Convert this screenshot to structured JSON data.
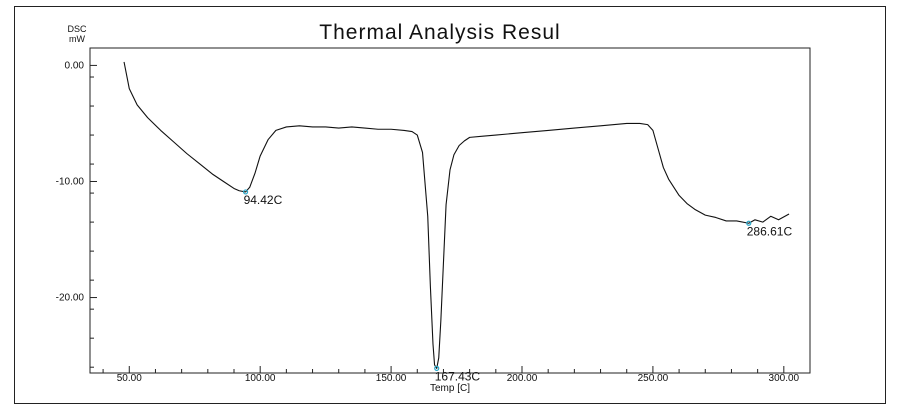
{
  "chart_data": {
    "type": "line",
    "title": "Thermal Analysis Resul",
    "ylabel_lines": [
      "DSC",
      "mW"
    ],
    "xlabel": "Temp [C]",
    "xlim": [
      35,
      310
    ],
    "ylim": [
      -26.5,
      1.5
    ],
    "xticks": [
      50,
      100,
      150,
      200,
      250,
      300
    ],
    "xtick_labels": [
      "50.00",
      "100.00",
      "150.00",
      "200.00",
      "250.00",
      "300.00"
    ],
    "yticks": [
      0,
      -10,
      -20
    ],
    "ytick_labels": [
      "0.00",
      "-10.00",
      "-20.00"
    ],
    "grid": false,
    "series": [
      {
        "color": "#111111",
        "x": [
          48,
          50,
          53,
          57,
          62,
          67,
          72,
          77,
          82,
          86,
          90,
          92,
          94.42,
          96,
          98,
          100,
          103,
          106,
          110,
          115,
          120,
          125,
          130,
          135,
          140,
          145,
          150,
          155,
          158,
          160,
          162,
          164,
          165,
          166,
          166.6,
          167.43,
          168.2,
          169,
          170,
          171,
          172.5,
          174,
          176,
          178,
          180,
          185,
          190,
          200,
          210,
          220,
          230,
          240,
          245,
          248,
          250,
          252,
          254,
          256,
          258,
          260,
          263,
          266,
          270,
          274,
          278,
          282,
          286.61,
          289,
          292,
          295,
          298,
          302
        ],
        "y": [
          0.3,
          -2.0,
          -3.4,
          -4.5,
          -5.6,
          -6.6,
          -7.6,
          -8.5,
          -9.4,
          -10.0,
          -10.6,
          -10.8,
          -10.9,
          -10.5,
          -9.3,
          -7.8,
          -6.4,
          -5.6,
          -5.3,
          -5.2,
          -5.3,
          -5.3,
          -5.4,
          -5.3,
          -5.4,
          -5.5,
          -5.5,
          -5.6,
          -5.7,
          -6.0,
          -7.5,
          -13.0,
          -19.0,
          -24.0,
          -25.8,
          -26.1,
          -25.2,
          -22.0,
          -17.0,
          -12.0,
          -9.0,
          -7.7,
          -6.9,
          -6.5,
          -6.2,
          -6.1,
          -6.0,
          -5.8,
          -5.6,
          -5.4,
          -5.2,
          -5.0,
          -5.0,
          -5.1,
          -5.6,
          -7.2,
          -8.8,
          -9.8,
          -10.5,
          -11.2,
          -11.9,
          -12.4,
          -12.9,
          -13.1,
          -13.4,
          -13.4,
          -13.6,
          -13.3,
          -13.5,
          -13.0,
          -13.3,
          -12.8
        ]
      }
    ],
    "annotations": [
      {
        "text": "94.42C",
        "x": 94.42,
        "y": -10.9,
        "align": "below"
      },
      {
        "text": "167.43C",
        "x": 167.43,
        "y": -26.1,
        "align": "below"
      },
      {
        "text": "286.61C",
        "x": 286.61,
        "y": -13.6,
        "align": "below"
      }
    ],
    "marker_color": "#2aa7c9"
  }
}
